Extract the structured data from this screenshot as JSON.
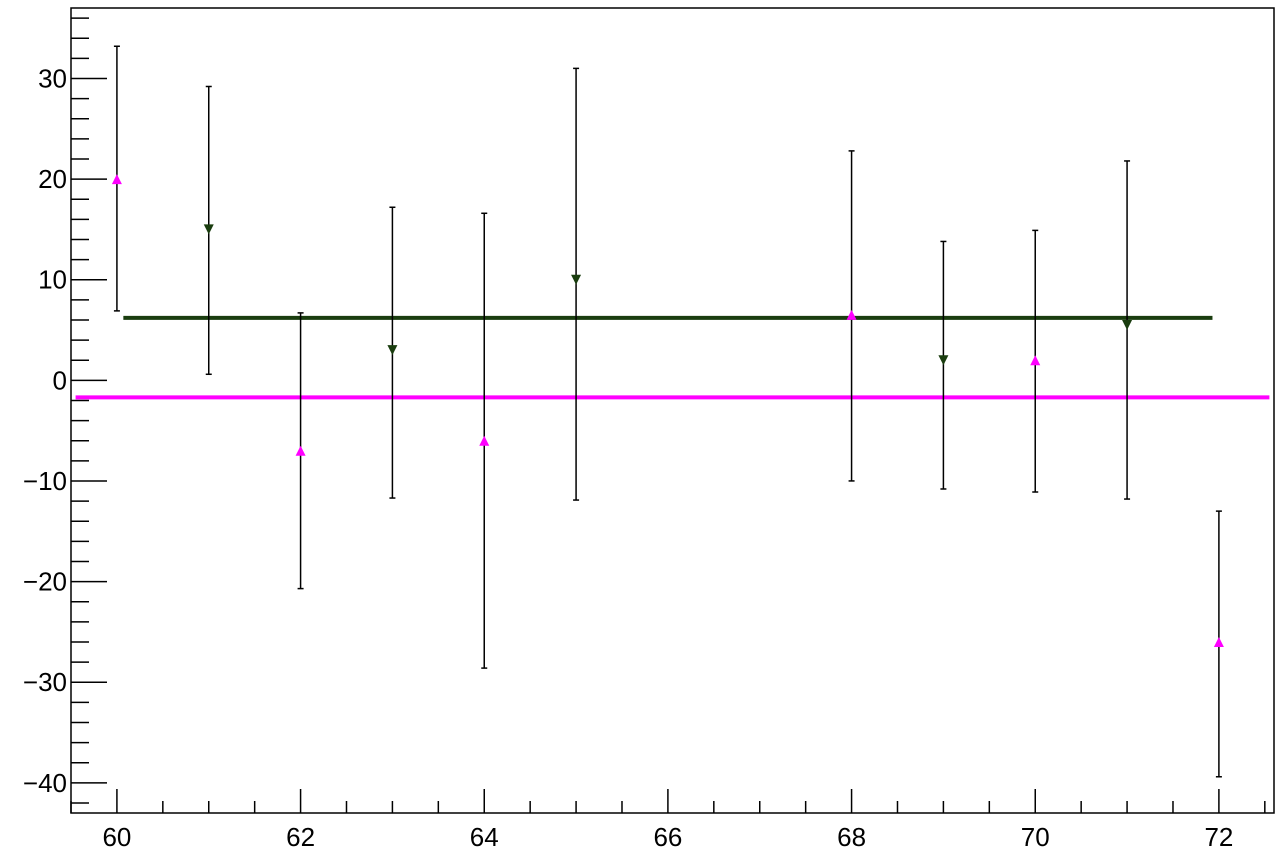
{
  "chart_data": {
    "type": "scatter",
    "title": "",
    "xlabel": "",
    "ylabel": "",
    "xlim": [
      59.5,
      72.6
    ],
    "ylim": [
      -43,
      37
    ],
    "x_ticks": [
      60,
      62,
      64,
      66,
      68,
      70,
      72
    ],
    "x_tick_labels": [
      "60",
      "62",
      "64",
      "66",
      "68",
      "70",
      "72"
    ],
    "x_minor_step": 0.5,
    "y_ticks": [
      -40,
      -30,
      -20,
      -10,
      0,
      10,
      20,
      30
    ],
    "y_tick_labels": [
      "−40",
      "−30",
      "−20",
      "−10",
      "0",
      "10",
      "20",
      "30"
    ],
    "y_minor_step": 2,
    "grid": false,
    "series": [
      {
        "marker": "triangle-up",
        "color": "#ff00ff",
        "points": [
          {
            "x": 60,
            "y": 20,
            "ylow": 6.9,
            "yhigh": 33.2
          },
          {
            "x": 62,
            "y": -7,
            "ylow": -20.7,
            "yhigh": 6.7
          },
          {
            "x": 64,
            "y": -6,
            "ylow": -28.6,
            "yhigh": 16.6
          },
          {
            "x": 68,
            "y": 6.5,
            "ylow": -10.0,
            "yhigh": 22.8
          },
          {
            "x": 70,
            "y": 2,
            "ylow": -11.1,
            "yhigh": 14.9
          },
          {
            "x": 72,
            "y": -26,
            "ylow": -39.4,
            "yhigh": -13.0
          }
        ]
      },
      {
        "marker": "triangle-down",
        "color": "#1a3d0f",
        "points": [
          {
            "x": 61,
            "y": 15,
            "ylow": 0.6,
            "yhigh": 29.2
          },
          {
            "x": 63,
            "y": 3,
            "ylow": -11.7,
            "yhigh": 17.2
          },
          {
            "x": 65,
            "y": 10,
            "ylow": -11.9,
            "yhigh": 31.0
          },
          {
            "x": 69,
            "y": 2,
            "ylow": -10.8,
            "yhigh": 13.8
          },
          {
            "x": 71,
            "y": 5.5,
            "ylow": -11.8,
            "yhigh": 21.8
          }
        ]
      }
    ],
    "reference_lines": [
      {
        "y": 6.2,
        "x_start": 60.07,
        "x_end": 71.93,
        "color": "#1a3d0f"
      },
      {
        "y": -1.7,
        "x_start": 59.55,
        "x_end": 72.55,
        "color": "#ff00ff"
      }
    ]
  }
}
